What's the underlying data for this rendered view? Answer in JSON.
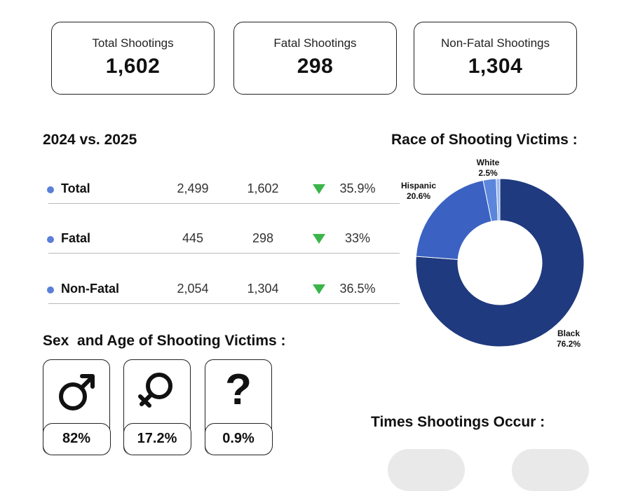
{
  "summary": {
    "total": {
      "label": "Total Shootings",
      "value": "1,602"
    },
    "fatal": {
      "label": "Fatal Shootings",
      "value": "298"
    },
    "nonfatal": {
      "label": "Non-Fatal Shootings",
      "value": "1,304"
    }
  },
  "comparison": {
    "title": "2024 vs. 2025",
    "rows": [
      {
        "name": "Total",
        "v2024": "2,499",
        "v2025": "1,602",
        "change": "35.9%"
      },
      {
        "name": "Fatal",
        "v2024": "445",
        "v2025": "298",
        "change": "33%"
      },
      {
        "name": "Non-Fatal",
        "v2024": "2,054",
        "v2025": "1,304",
        "change": "36.5%"
      }
    ]
  },
  "sex_age": {
    "title": "Sex  and Age of Shooting Victims :",
    "items": [
      {
        "icon": "male-icon",
        "value": "82%"
      },
      {
        "icon": "female-icon",
        "value": "17.2%"
      },
      {
        "icon": "question-icon",
        "value": "0.9%"
      }
    ]
  },
  "times": {
    "title": "Times Shootings Occur :"
  },
  "colors": {
    "black": "#1f3a7e",
    "hispanic": "#3b62c2",
    "white_main": "#5b86db",
    "white_light": "#9bb9ee",
    "down_arrow": "#3bb54a",
    "bullet": "#5b7fd8"
  },
  "chart_data": {
    "type": "pie",
    "donut": true,
    "title": "Race of Shooting Victims :",
    "slices": [
      {
        "label": "Black",
        "value": 76.2,
        "display": "76.2%"
      },
      {
        "label": "Hispanic",
        "value": 20.6,
        "display": "20.6%"
      },
      {
        "label": "White",
        "value": 2.5,
        "display": "2.5%"
      },
      {
        "label": "",
        "value": 0.7
      }
    ]
  }
}
